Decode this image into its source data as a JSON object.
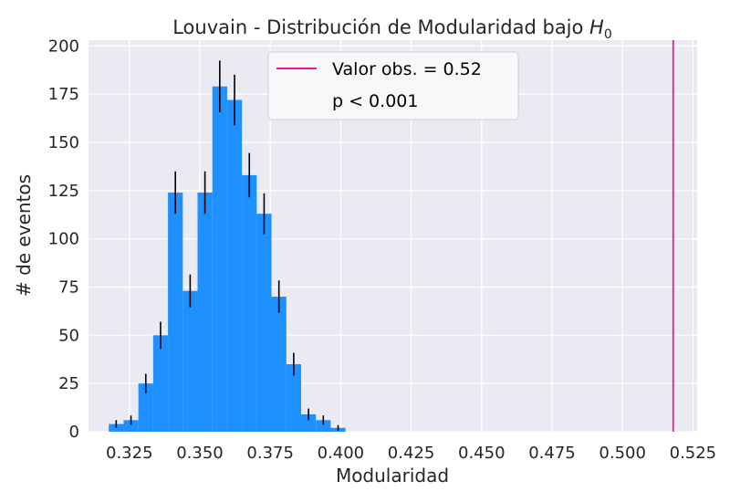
{
  "chart_data": {
    "type": "bar",
    "title_prefix": "Louvain - Distribución de Modularidad bajo ",
    "title_math_base": "H",
    "title_math_sub": "0",
    "xlabel": "Modularidad",
    "ylabel": "# de eventos",
    "xlim": [
      0.3105,
      0.5265
    ],
    "ylim": [
      0,
      203
    ],
    "xticks": [
      0.325,
      0.35,
      0.375,
      0.4,
      0.425,
      0.45,
      0.475,
      0.5,
      0.525
    ],
    "xtick_labels": [
      "0.325",
      "0.350",
      "0.375",
      "0.400",
      "0.425",
      "0.450",
      "0.475",
      "0.500",
      "0.525"
    ],
    "yticks": [
      0,
      25,
      50,
      75,
      100,
      125,
      150,
      175,
      200
    ],
    "ytick_labels": [
      "0",
      "25",
      "50",
      "75",
      "100",
      "125",
      "150",
      "175",
      "200"
    ],
    "grid": true,
    "legend_position": "top-center",
    "bin_width": 0.00525,
    "bin_left_edges": [
      0.3177,
      0.32295,
      0.3282,
      0.33345,
      0.3387,
      0.34395,
      0.3492,
      0.35445,
      0.3597,
      0.36495,
      0.3702,
      0.37545,
      0.3807,
      0.38595,
      0.3912,
      0.39645,
      0.4017
    ],
    "values": [
      4,
      6,
      25,
      50,
      124,
      73,
      124,
      179,
      172,
      133,
      113,
      70,
      35,
      9,
      6,
      2,
      0
    ],
    "error_bars": [
      2,
      2.4,
      5,
      7,
      11,
      8.5,
      11,
      13.4,
      13.1,
      11.5,
      10.6,
      8.4,
      5.9,
      3,
      2.4,
      1.4,
      0
    ],
    "observed_line": {
      "x": 0.518,
      "label": "Valor obs. = 0.52"
    },
    "annotation": "p < 0.001",
    "colors": {
      "bars": "#1e90ff",
      "errorbars": "#000000",
      "observed_line": "#e81d8f",
      "plot_bg": "#eaeaf2",
      "grid": "#ffffff"
    }
  }
}
